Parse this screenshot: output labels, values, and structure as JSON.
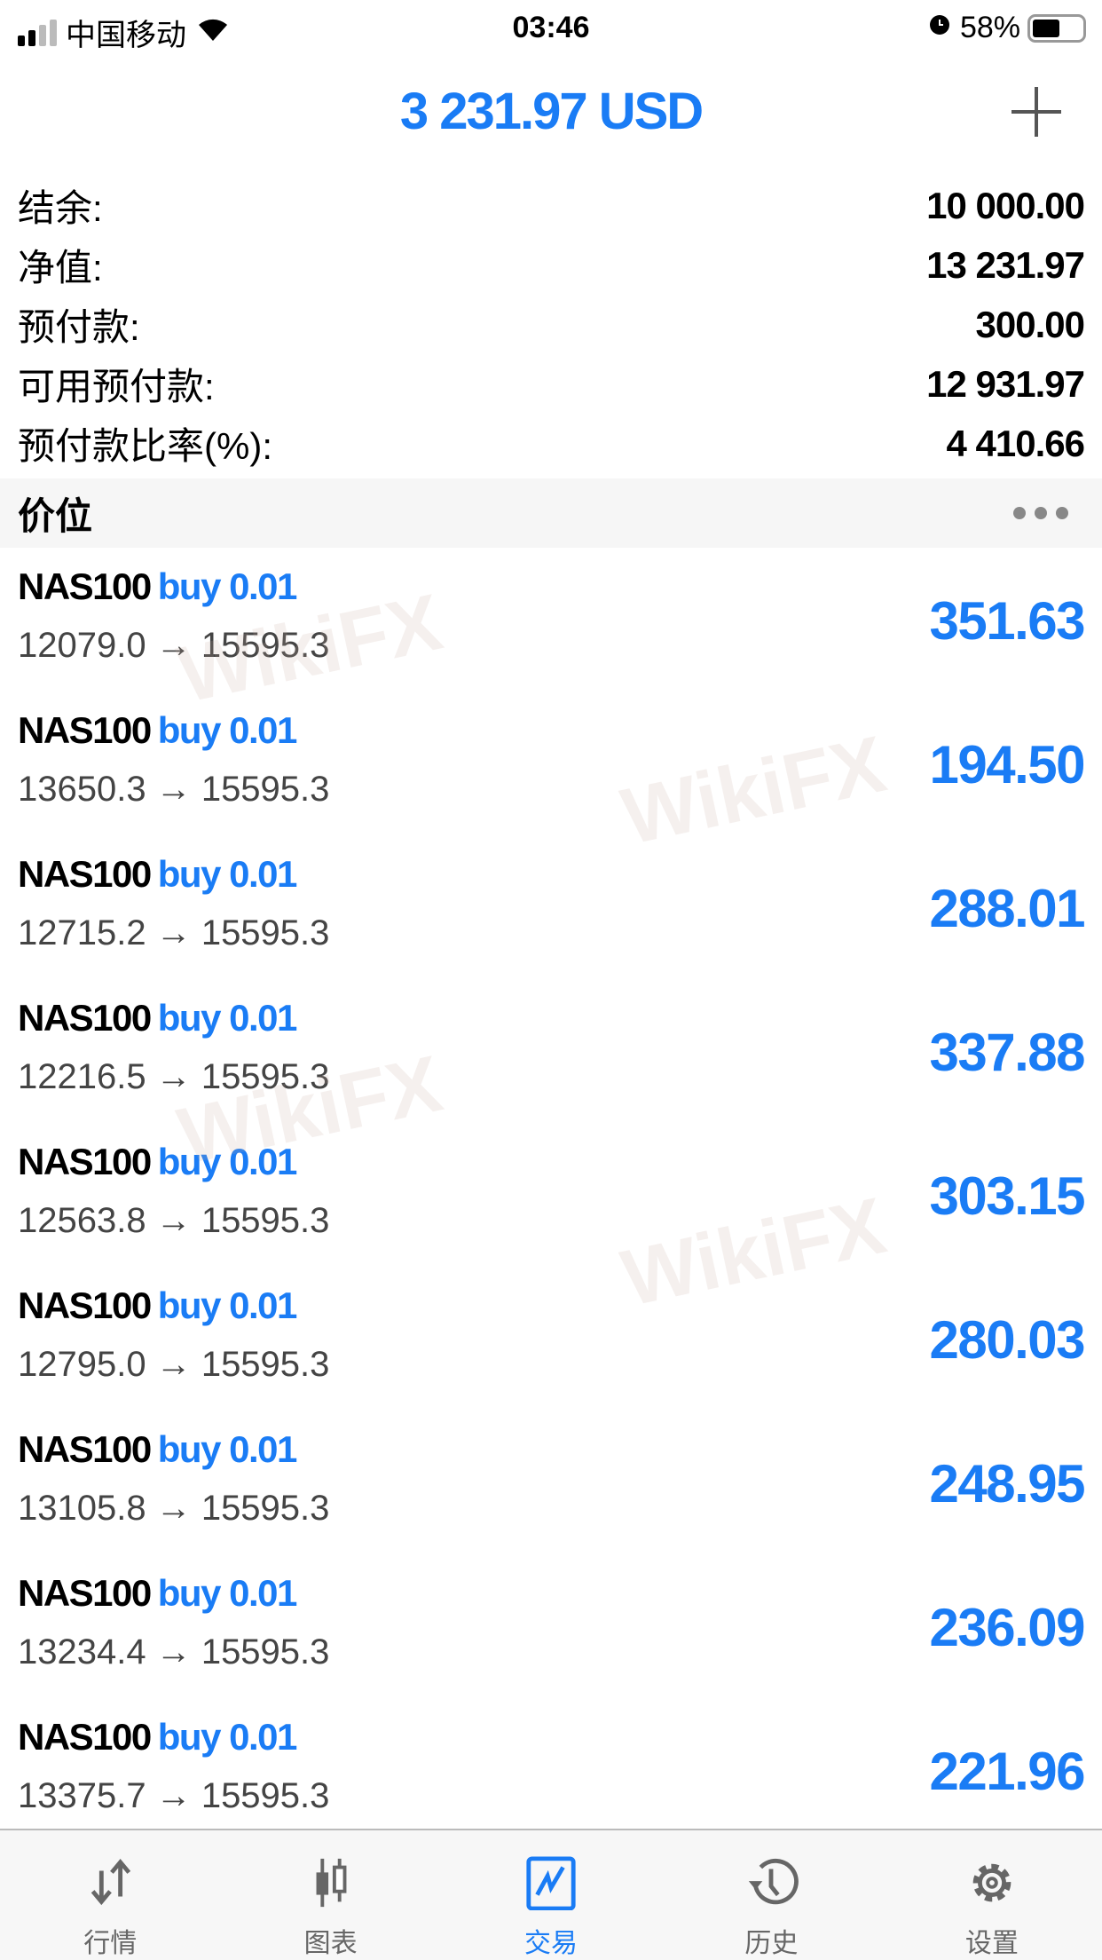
{
  "status_bar": {
    "carrier": "中国移动",
    "time": "03:46",
    "battery": "58%",
    "battery_level": 0.58
  },
  "header": {
    "title": "3 231.97 USD",
    "add_icon": "plus-icon"
  },
  "summary": [
    {
      "label": "结余:",
      "value": "10 000.00"
    },
    {
      "label": "净值:",
      "value": "13 231.97"
    },
    {
      "label": "预付款:",
      "value": "300.00"
    },
    {
      "label": "可用预付款:",
      "value": "12 931.97"
    },
    {
      "label": "预付款比率(%):",
      "value": "4 410.66"
    }
  ],
  "section": {
    "title": "价位",
    "more_icon": "ellipsis-icon"
  },
  "positions": [
    {
      "symbol": "NAS100",
      "dir": "buy 0.01",
      "prices": "12079.0 → 15595.3",
      "profit": "351.63"
    },
    {
      "symbol": "NAS100",
      "dir": "buy 0.01",
      "prices": "13650.3 → 15595.3",
      "profit": "194.50"
    },
    {
      "symbol": "NAS100",
      "dir": "buy 0.01",
      "prices": "12715.2 → 15595.3",
      "profit": "288.01"
    },
    {
      "symbol": "NAS100",
      "dir": "buy 0.01",
      "prices": "12216.5 → 15595.3",
      "profit": "337.88"
    },
    {
      "symbol": "NAS100",
      "dir": "buy 0.01",
      "prices": "12563.8 → 15595.3",
      "profit": "303.15"
    },
    {
      "symbol": "NAS100",
      "dir": "buy 0.01",
      "prices": "12795.0 → 15595.3",
      "profit": "280.03"
    },
    {
      "symbol": "NAS100",
      "dir": "buy 0.01",
      "prices": "13105.8 → 15595.3",
      "profit": "248.95"
    },
    {
      "symbol": "NAS100",
      "dir": "buy 0.01",
      "prices": "13234.4 → 15595.3",
      "profit": "236.09"
    },
    {
      "symbol": "NAS100",
      "dir": "buy 0.01",
      "prices": "13375.7 → 15595.3",
      "profit": "221.96"
    }
  ],
  "watermark": "WikiFX",
  "tabs": [
    {
      "label": "行情",
      "icon": "quotes-arrows-icon"
    },
    {
      "label": "图表",
      "icon": "candlestick-icon"
    },
    {
      "label": "交易",
      "icon": "trade-chart-icon",
      "active": true
    },
    {
      "label": "历史",
      "icon": "history-icon"
    },
    {
      "label": "设置",
      "icon": "gear-icon"
    }
  ],
  "colors": {
    "accent": "#1a7cf5",
    "tab_inactive": "#666666"
  }
}
